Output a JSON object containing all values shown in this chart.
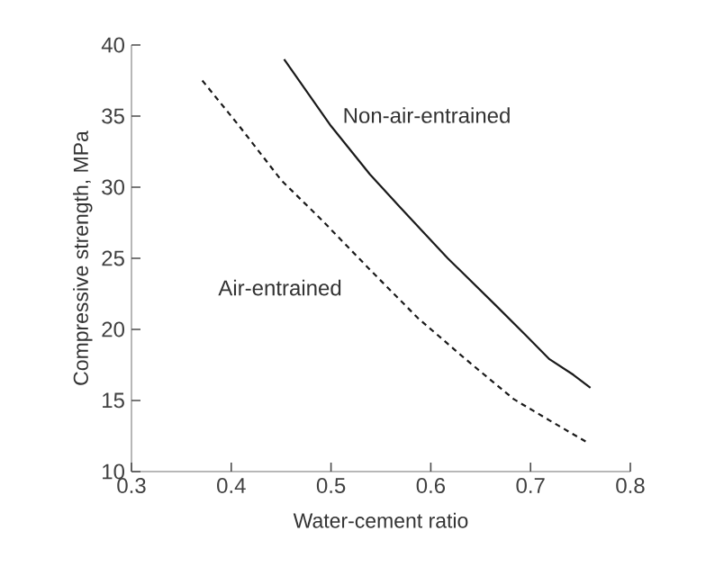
{
  "chart_data": {
    "type": "line",
    "xlabel": "Water-cement ratio",
    "ylabel": "Compressive strength, MPa",
    "xlim": [
      0.3,
      0.8
    ],
    "ylim": [
      10,
      40
    ],
    "xticks": [
      0.3,
      0.4,
      0.5,
      0.6,
      0.7,
      0.8
    ],
    "yticks": [
      10,
      15,
      20,
      25,
      30,
      35,
      40
    ],
    "grid": false,
    "marker": "none",
    "series": [
      {
        "name": "Non-air-entrained",
        "color": "#1a1a1a",
        "line_style": "solid",
        "x": [
          0.453,
          0.5,
          0.539,
          0.569,
          0.617,
          0.665,
          0.695,
          0.719,
          0.743,
          0.76
        ],
        "values": [
          39.0,
          34.3,
          30.9,
          28.6,
          25.0,
          21.7,
          19.6,
          17.9,
          16.8,
          15.9
        ]
      },
      {
        "name": "Air-entrained",
        "color": "#1a1a1a",
        "line_style": "dashed",
        "x": [
          0.371,
          0.408,
          0.45,
          0.492,
          0.539,
          0.587,
          0.635,
          0.683,
          0.719,
          0.758
        ],
        "values": [
          37.5,
          34.3,
          30.5,
          27.6,
          24.2,
          20.8,
          17.9,
          15.1,
          13.6,
          12.0
        ]
      }
    ]
  }
}
